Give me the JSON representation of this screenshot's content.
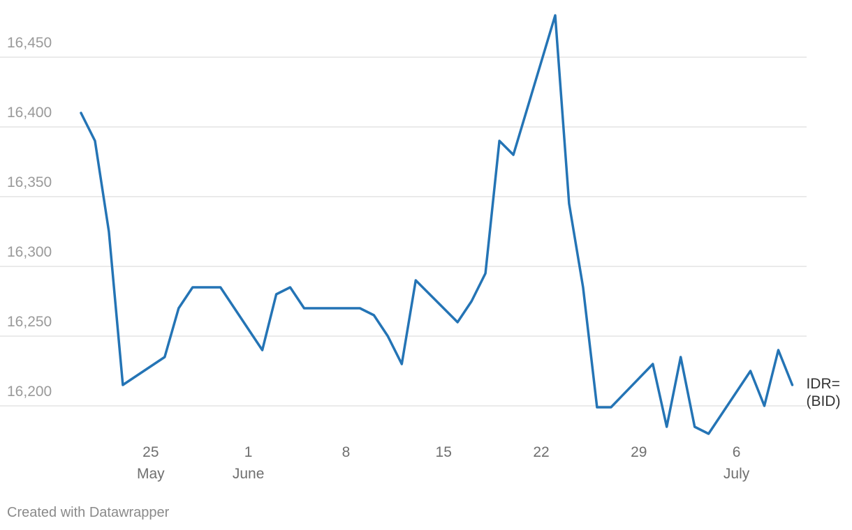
{
  "chart_data": {
    "type": "line",
    "title": "",
    "xlabel": "",
    "ylabel": "",
    "ylim": [
      16175,
      16485
    ],
    "y_ticks": [
      16200,
      16250,
      16300,
      16350,
      16400,
      16450
    ],
    "y_tick_labels": [
      "16,200",
      "16,250",
      "16,300",
      "16,350",
      "16,400",
      "16,450"
    ],
    "x_ticks": [
      {
        "date": "2020-05-25",
        "day": "25",
        "month": "May"
      },
      {
        "date": "2020-06-01",
        "day": "1",
        "month": "June"
      },
      {
        "date": "2020-06-08",
        "day": "8",
        "month": ""
      },
      {
        "date": "2020-06-15",
        "day": "15",
        "month": ""
      },
      {
        "date": "2020-06-22",
        "day": "22",
        "month": ""
      },
      {
        "date": "2020-06-29",
        "day": "29",
        "month": ""
      },
      {
        "date": "2020-07-06",
        "day": "6",
        "month": "July"
      }
    ],
    "grid": true,
    "color": "#2474b5",
    "series": [
      {
        "name": "IDR= (BID)",
        "name_lines": [
          "IDR=",
          "(BID)"
        ],
        "points": [
          {
            "x": "2020-05-20",
            "y": 16410
          },
          {
            "x": "2020-05-21",
            "y": 16390
          },
          {
            "x": "2020-05-22",
            "y": 16325
          },
          {
            "x": "2020-05-23",
            "y": 16215
          },
          {
            "x": "2020-05-26",
            "y": 16235
          },
          {
            "x": "2020-05-27",
            "y": 16270
          },
          {
            "x": "2020-05-28",
            "y": 16285
          },
          {
            "x": "2020-05-30",
            "y": 16285
          },
          {
            "x": "2020-06-02",
            "y": 16240
          },
          {
            "x": "2020-06-03",
            "y": 16280
          },
          {
            "x": "2020-06-04",
            "y": 16285
          },
          {
            "x": "2020-06-05",
            "y": 16270
          },
          {
            "x": "2020-06-09",
            "y": 16270
          },
          {
            "x": "2020-06-10",
            "y": 16265
          },
          {
            "x": "2020-06-11",
            "y": 16250
          },
          {
            "x": "2020-06-12",
            "y": 16230
          },
          {
            "x": "2020-06-13",
            "y": 16290
          },
          {
            "x": "2020-06-16",
            "y": 16260
          },
          {
            "x": "2020-06-17",
            "y": 16275
          },
          {
            "x": "2020-06-18",
            "y": 16295
          },
          {
            "x": "2020-06-19",
            "y": 16390
          },
          {
            "x": "2020-06-20",
            "y": 16380
          },
          {
            "x": "2020-06-23",
            "y": 16480
          },
          {
            "x": "2020-06-24",
            "y": 16345
          },
          {
            "x": "2020-06-25",
            "y": 16285
          },
          {
            "x": "2020-06-26",
            "y": 16199
          },
          {
            "x": "2020-06-27",
            "y": 16199
          },
          {
            "x": "2020-06-30",
            "y": 16230
          },
          {
            "x": "2020-07-01",
            "y": 16185
          },
          {
            "x": "2020-07-02",
            "y": 16235
          },
          {
            "x": "2020-07-03",
            "y": 16185
          },
          {
            "x": "2020-07-04",
            "y": 16180
          },
          {
            "x": "2020-07-07",
            "y": 16225
          },
          {
            "x": "2020-07-08",
            "y": 16200
          },
          {
            "x": "2020-07-09",
            "y": 16240
          },
          {
            "x": "2020-07-10",
            "y": 16215
          }
        ]
      }
    ]
  },
  "footer": {
    "credit": "Created with Datawrapper"
  }
}
